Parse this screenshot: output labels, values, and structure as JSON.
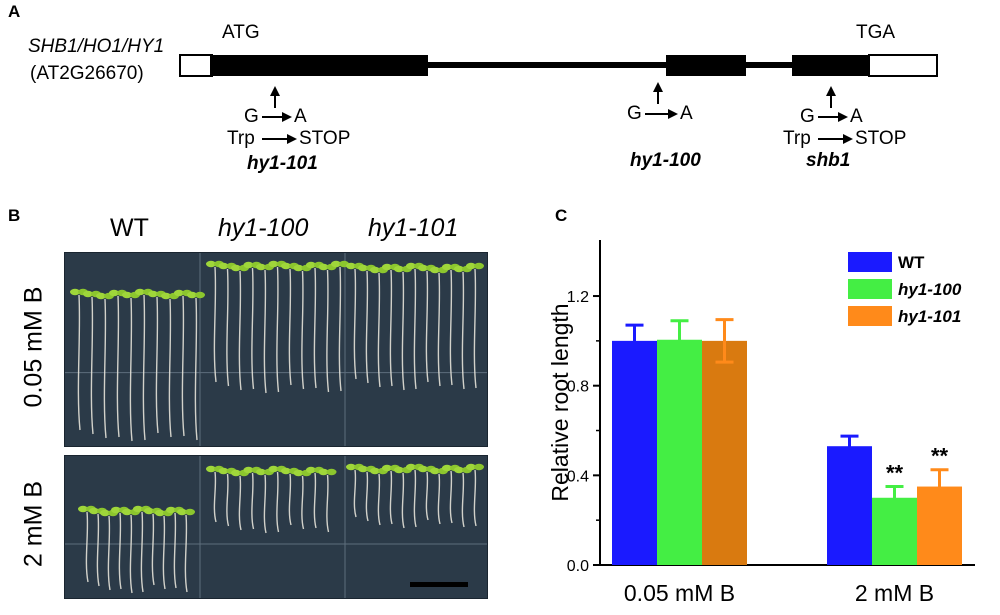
{
  "panel_a": {
    "label": "A",
    "gene_name_italic": "SHB1/HO1/HY1",
    "gene_id": "(AT2G26670)",
    "start_codon": "ATG",
    "stop_codon": "TGA",
    "mutations": [
      {
        "base_from": "G",
        "base_to": "A",
        "aa_from": "Trp",
        "aa_to": "STOP",
        "allele": "hy1-101"
      },
      {
        "base_from": "G",
        "base_to": "A",
        "allele": "hy1-100"
      },
      {
        "base_from": "G",
        "base_to": "A",
        "aa_from": "Trp",
        "aa_to": "STOP",
        "allele": "shb1"
      }
    ]
  },
  "panel_b": {
    "label": "B",
    "columns": [
      "WT",
      "hy1-100",
      "hy1-101"
    ],
    "rows": [
      "0.05 mM B",
      "2 mM B"
    ]
  },
  "panel_c": {
    "label": "C"
  },
  "chart_data": {
    "type": "bar",
    "categories": [
      "0.05 mM B",
      "2 mM B"
    ],
    "series": [
      {
        "name": "WT",
        "values": [
          1.0,
          0.53
        ],
        "errors": [
          0.07,
          0.045
        ],
        "color": "#1a1aff"
      },
      {
        "name": "hy1-100",
        "values": [
          1.005,
          0.3
        ],
        "errors": [
          0.085,
          0.05
        ],
        "color": "#44ee44"
      },
      {
        "name": "hy1-101",
        "values": [
          1.0,
          0.35
        ],
        "errors": [
          0.095,
          0.075
        ],
        "color": "#ff8a1a"
      }
    ],
    "significance": [
      [
        "",
        ""
      ],
      [
        "",
        "**"
      ],
      [
        "",
        "**"
      ]
    ],
    "ylabel": "Relative root length",
    "yticks": [
      0.0,
      0.4,
      0.8,
      1.2
    ],
    "tick_labels": [
      "0.0",
      "0.4",
      "0.8",
      "1.2"
    ],
    "ylim": [
      0,
      1.45
    ],
    "legend_position": "top-right"
  },
  "colors": {
    "exon_fill": "#000000",
    "utr_fill": "#ffffff",
    "photo_bg": "#2b3a48",
    "seedling": "#9fd63a"
  }
}
